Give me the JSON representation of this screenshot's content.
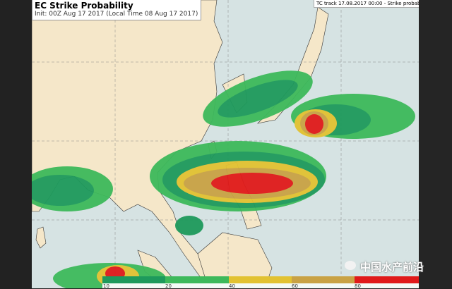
{
  "title": "EC Strike Probability",
  "subtitle": "Init: 00Z Aug 17 2017 (Local Time 08 Aug 17 2017)",
  "track_label": "TC track 17.08.2017 00:00 - Strike probability",
  "colors": {
    "land": "#f5e7c9",
    "sea": "#d6e3e3",
    "p10": "#1e9a5c",
    "p20": "#3db95b",
    "p40": "#e2c232",
    "p60": "#c9a244",
    "p80": "#e01a1a"
  },
  "colorbar": {
    "labels": [
      "10",
      "20",
      "40",
      "60",
      "80"
    ]
  },
  "watermark": "中国水产前沿",
  "watermark_icon": "wechat-icon"
}
